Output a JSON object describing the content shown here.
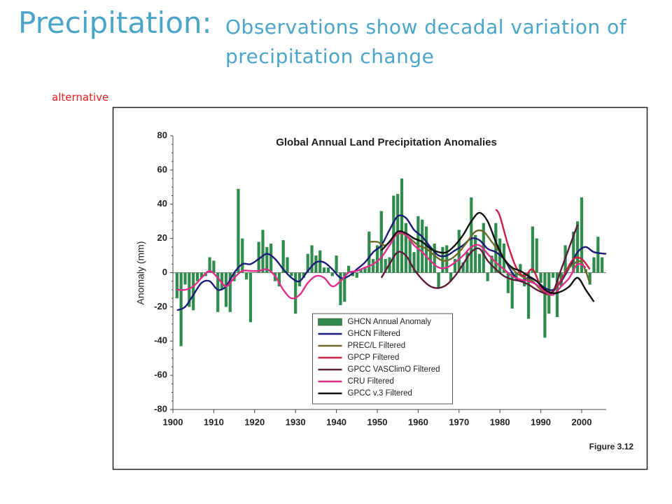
{
  "slide": {
    "title": "Precipitation:",
    "subtitle": "Observations show decadal variation of precipitation change",
    "note": "alternative",
    "figure_label": "Figure 3.12"
  },
  "chart_data": {
    "type": "combo",
    "title": "Global Annual Land Precipitation Anomalies",
    "y_label": "Anomaly (mm)",
    "xlim": [
      1900,
      2006
    ],
    "xticks": [
      1900,
      1910,
      1920,
      1930,
      1940,
      1950,
      1960,
      1970,
      1980,
      1990,
      2000
    ],
    "ylim": [
      -80,
      80
    ],
    "yticks": [
      -80,
      -60,
      -40,
      -20,
      0,
      20,
      40,
      60,
      80
    ],
    "legend": "lower center",
    "x": [
      1901,
      1902,
      1903,
      1904,
      1905,
      1906,
      1907,
      1908,
      1909,
      1910,
      1911,
      1912,
      1913,
      1914,
      1915,
      1916,
      1917,
      1918,
      1919,
      1920,
      1921,
      1922,
      1923,
      1924,
      1925,
      1926,
      1927,
      1928,
      1929,
      1930,
      1931,
      1932,
      1933,
      1934,
      1935,
      1936,
      1937,
      1938,
      1939,
      1940,
      1941,
      1942,
      1943,
      1944,
      1945,
      1946,
      1947,
      1948,
      1949,
      1950,
      1951,
      1952,
      1953,
      1954,
      1955,
      1956,
      1957,
      1958,
      1959,
      1960,
      1961,
      1962,
      1963,
      1964,
      1965,
      1966,
      1967,
      1968,
      1969,
      1970,
      1971,
      1972,
      1973,
      1974,
      1975,
      1976,
      1977,
      1978,
      1979,
      1980,
      1981,
      1982,
      1983,
      1984,
      1985,
      1986,
      1987,
      1988,
      1989,
      1990,
      1991,
      1992,
      1993,
      1994,
      1995,
      1996,
      1997,
      1998,
      1999,
      2000,
      2001,
      2002,
      2003,
      2004,
      2005
    ],
    "series": [
      {
        "name": "GHCN Annual Anomaly",
        "type": "bar",
        "color": "#2f8c4c",
        "values": [
          -15,
          -43,
          -7,
          -20,
          -22,
          -5,
          -3,
          -2,
          9,
          7,
          -23,
          -10,
          -20,
          -23,
          -5,
          49,
          20,
          -4,
          -29,
          0,
          18,
          25,
          15,
          17,
          -5,
          -8,
          19,
          9,
          -2,
          -24,
          -8,
          -3,
          11,
          16,
          10,
          13,
          3,
          3,
          -2,
          10,
          -19,
          -17,
          4,
          -2,
          -3,
          2,
          3,
          24,
          8,
          16,
          36,
          8,
          9,
          45,
          46,
          55,
          29,
          20,
          12,
          33,
          31,
          27,
          15,
          17,
          -9,
          15,
          16,
          -5,
          8,
          25,
          6,
          12,
          44,
          22,
          11,
          29,
          -5,
          10,
          29,
          20,
          17,
          -12,
          -21,
          -4,
          5,
          -8,
          -27,
          27,
          20,
          -6,
          -38,
          -24,
          -3,
          -26,
          -8,
          16,
          0,
          24,
          30,
          44,
          2,
          -7,
          9,
          21,
          9
        ]
      },
      {
        "name": "GHCN Filtered",
        "type": "line",
        "color": "#1c1c78",
        "x": [
          1901,
          1903,
          1905,
          1907,
          1909,
          1911,
          1913,
          1915,
          1917,
          1919,
          1921,
          1923,
          1925,
          1927,
          1929,
          1931,
          1933,
          1935,
          1937,
          1939,
          1941,
          1943,
          1945,
          1947,
          1949,
          1951,
          1953,
          1955,
          1957,
          1959,
          1961,
          1963,
          1965,
          1967,
          1969,
          1971,
          1973,
          1975,
          1977,
          1979,
          1981,
          1983,
          1985,
          1987,
          1989,
          1991,
          1993,
          1995,
          1997,
          1999,
          2001,
          2003,
          2006
        ],
        "values": [
          -22,
          -20,
          -13,
          -6,
          -5,
          -10,
          -8,
          0,
          5,
          5,
          8,
          11,
          8,
          2,
          -3,
          -5,
          1,
          6,
          6,
          2,
          -3,
          -2,
          2,
          6,
          12,
          16,
          25,
          33,
          32,
          25,
          21,
          15,
          10,
          10,
          13,
          16,
          20,
          19,
          14,
          12,
          8,
          0,
          -5,
          -3,
          -5,
          -9,
          -10,
          -5,
          3,
          12,
          15,
          12,
          11
        ]
      },
      {
        "name": "PREC/L Filtered",
        "type": "line",
        "color": "#6e6a2a",
        "x": [
          1948,
          1950,
          1952,
          1954,
          1956,
          1958,
          1960,
          1962,
          1964,
          1966,
          1968,
          1970,
          1972,
          1974,
          1976,
          1978,
          1980,
          1982,
          1984,
          1986,
          1988,
          1990,
          1992,
          1994,
          1996,
          1998,
          2000,
          2002
        ],
        "values": [
          18,
          18,
          16,
          21,
          23,
          20,
          16,
          14,
          10,
          7,
          8,
          12,
          18,
          24,
          24,
          18,
          12,
          5,
          0,
          -3,
          -5,
          -10,
          -13,
          -8,
          0,
          5,
          6,
          -6
        ]
      },
      {
        "name": "GPCP Filtered",
        "type": "line",
        "color": "#c81e48",
        "x": [
          1979,
          1980,
          1982,
          1984,
          1986,
          1988,
          1990,
          1992,
          1994,
          1996,
          1998,
          2000,
          2002
        ],
        "values": [
          37,
          33,
          16,
          3,
          -2,
          2,
          -8,
          -12,
          -8,
          0,
          8,
          8,
          2
        ]
      },
      {
        "name": "GPCC VASClimO Filtered",
        "type": "line",
        "color": "#5c1a3c",
        "x": [
          1951,
          1953,
          1955,
          1957,
          1959,
          1961,
          1963,
          1965,
          1967,
          1969,
          1971,
          1973,
          1975,
          1977,
          1979,
          1981,
          1983,
          1985,
          1987,
          1989,
          1991,
          1993,
          1995,
          1997,
          1999
        ],
        "values": [
          -3,
          5,
          12,
          10,
          2,
          -4,
          -8,
          -9,
          -7,
          -2,
          5,
          12,
          14,
          7,
          2,
          -2,
          -4,
          -5,
          -7,
          -10,
          -12,
          -11,
          2,
          15,
          28
        ]
      },
      {
        "name": "CRU Filtered",
        "type": "line",
        "color": "#e02d8c",
        "x": [
          1901,
          1903,
          1905,
          1907,
          1909,
          1911,
          1913,
          1915,
          1917,
          1919,
          1921,
          1923,
          1925,
          1927,
          1929,
          1931,
          1933,
          1935,
          1937,
          1939,
          1941,
          1943,
          1945,
          1947,
          1949,
          1951,
          1953,
          1955,
          1957,
          1959,
          1961,
          1963,
          1965,
          1967,
          1969,
          1971,
          1973,
          1975,
          1977,
          1979,
          1981,
          1983,
          1985,
          1987,
          1989,
          1991,
          1993,
          1995,
          1997,
          1999,
          2001
        ],
        "values": [
          -10,
          -10,
          -8,
          -3,
          1,
          -3,
          -8,
          -3,
          1,
          1,
          1,
          2,
          -2,
          -10,
          -15,
          -13,
          -6,
          -2,
          -3,
          -8,
          -5,
          0,
          1,
          3,
          5,
          9,
          16,
          23,
          22,
          16,
          12,
          7,
          3,
          3,
          6,
          10,
          15,
          16,
          11,
          6,
          2,
          -2,
          -4,
          -5,
          -7,
          -11,
          -13,
          -8,
          -3,
          5,
          3
        ]
      },
      {
        "name": "GPCC v.3 Filtered",
        "type": "line",
        "color": "#111111",
        "x": [
          1951,
          1953,
          1955,
          1957,
          1959,
          1961,
          1963,
          1965,
          1967,
          1969,
          1971,
          1973,
          1975,
          1977,
          1979,
          1981,
          1983,
          1985,
          1987,
          1989,
          1991,
          1993,
          1995,
          1997,
          1999,
          2001,
          2003
        ],
        "values": [
          13,
          18,
          24,
          23,
          20,
          18,
          14,
          12,
          12,
          16,
          22,
          30,
          35,
          30,
          18,
          8,
          3,
          1,
          -2,
          -5,
          -10,
          -12,
          -11,
          -8,
          -3,
          -10,
          -17
        ]
      }
    ]
  }
}
